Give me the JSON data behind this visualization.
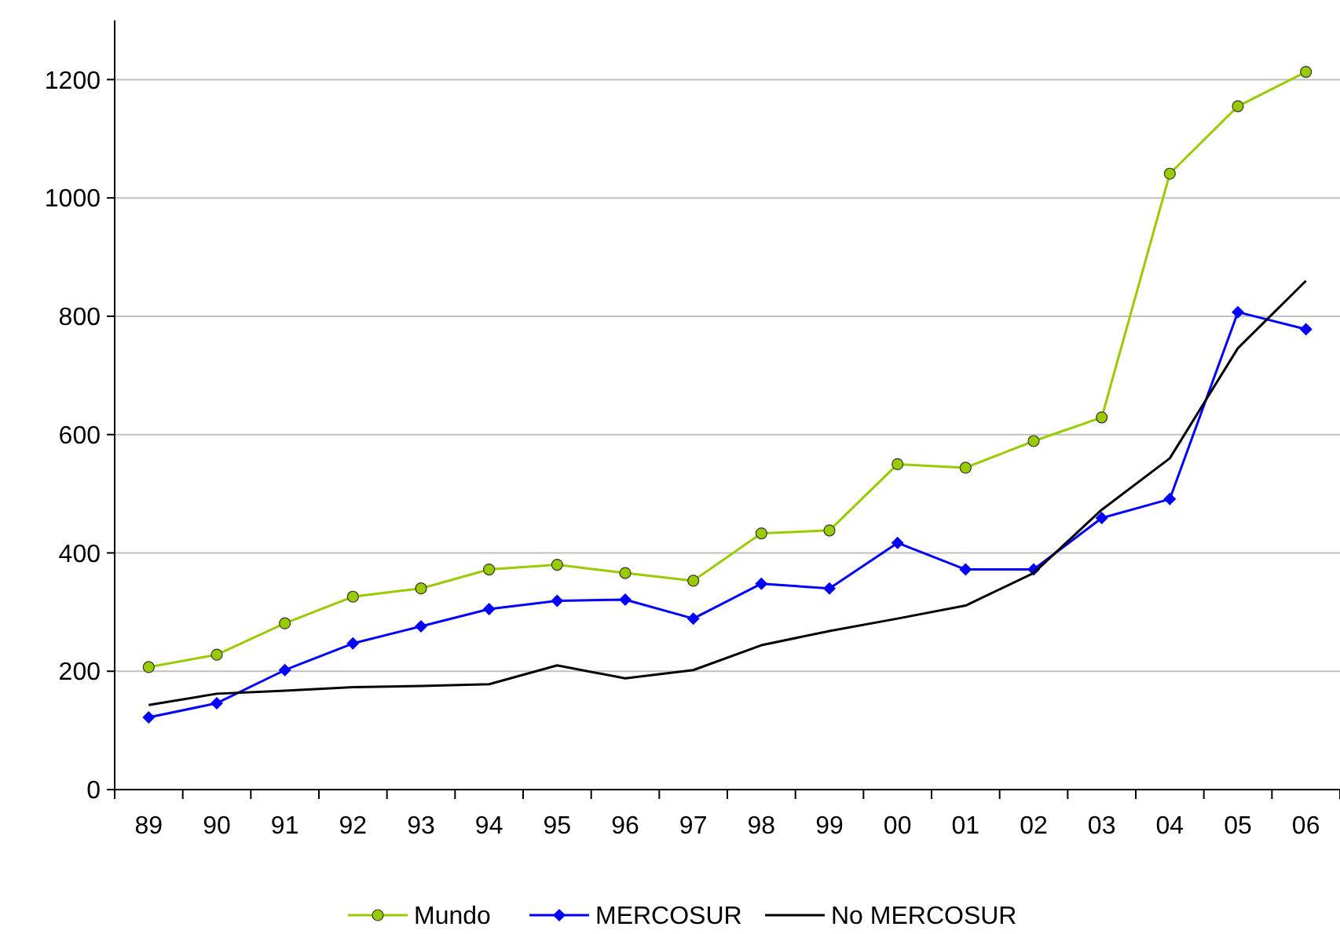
{
  "chart_data": {
    "type": "line",
    "categories": [
      "89",
      "90",
      "91",
      "92",
      "93",
      "94",
      "95",
      "96",
      "97",
      "98",
      "99",
      "00",
      "01",
      "02",
      "03",
      "04",
      "05",
      "06"
    ],
    "series": [
      {
        "name": "Mundo",
        "color": "#99cc00",
        "marker": "circle",
        "values": [
          207,
          228,
          281,
          326,
          340,
          372,
          380,
          366,
          353,
          433,
          438,
          550,
          544,
          589,
          629,
          1041,
          1155,
          1213
        ]
      },
      {
        "name": "MERCOSUR",
        "color": "#0000ff",
        "marker": "diamond",
        "values": [
          122,
          146,
          202,
          247,
          276,
          305,
          319,
          321,
          289,
          348,
          340,
          417,
          372,
          372,
          459,
          491,
          807,
          778
        ]
      },
      {
        "name": "No MERCOSUR",
        "color": "#000000",
        "marker": "none",
        "values": [
          143,
          162,
          167,
          173,
          175,
          178,
          210,
          188,
          202,
          244,
          268,
          289,
          311,
          366,
          473,
          560,
          746,
          860
        ]
      }
    ],
    "ylim": [
      0,
      1300
    ],
    "yticks": [
      0,
      200,
      400,
      600,
      800,
      1000,
      1200
    ],
    "grid": "y",
    "legend": "bottom"
  }
}
